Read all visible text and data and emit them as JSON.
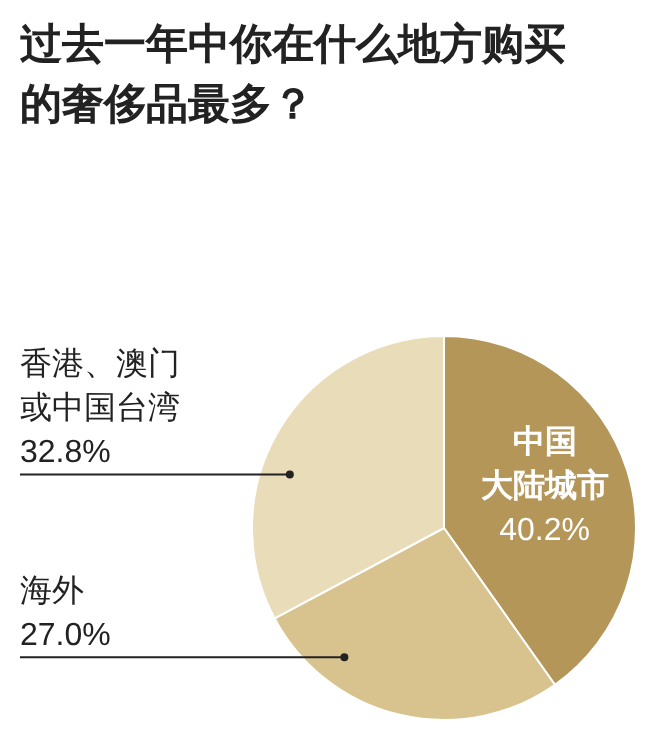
{
  "chart_data": {
    "type": "pie",
    "title": "过去一年中你在什么地方购买的奢侈品最多？",
    "categories": [
      "中国大陆城市",
      "海外",
      "香港、澳门或中国台湾"
    ],
    "values": [
      40.2,
      27.0,
      32.8
    ],
    "value_labels": [
      "40.2%",
      "27.0%",
      "32.8%"
    ],
    "colors": [
      "#b59659",
      "#d8c38f",
      "#e9dcb8"
    ],
    "legend": false
  }
}
